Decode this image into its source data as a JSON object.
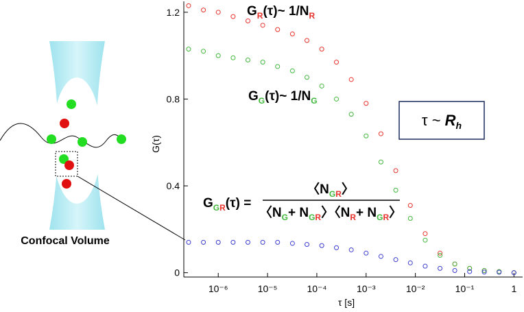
{
  "chart_data": {
    "type": "scatter",
    "x_label": "τ [s]",
    "y_label": "G(τ)",
    "log_x": true,
    "xlim": [
      2e-07,
      1.5
    ],
    "ylim": [
      -0.02,
      1.25
    ],
    "xticks": [
      {
        "value": 1e-06,
        "label": "10⁻⁶"
      },
      {
        "value": 1e-05,
        "label": "10⁻⁵"
      },
      {
        "value": 0.0001,
        "label": "10⁻⁴"
      },
      {
        "value": 0.001,
        "label": "10⁻³"
      },
      {
        "value": 0.01,
        "label": "10⁻²"
      },
      {
        "value": 0.1,
        "label": "10⁻¹"
      },
      1
    ],
    "yticks": [
      0,
      0.4,
      0.8,
      1.2
    ],
    "x": [
      2.5e-07,
      5e-07,
      1e-06,
      2e-06,
      4e-06,
      8e-06,
      1.6e-05,
      3.2e-05,
      6.3e-05,
      0.000126,
      0.00025,
      0.0005,
      0.001,
      0.002,
      0.004,
      0.0079,
      0.0158,
      0.0316,
      0.063,
      0.126,
      0.25,
      0.5,
      1
    ],
    "series": [
      {
        "color": "#e8312a",
        "values": [
          1.23,
          1.21,
          1.2,
          1.18,
          1.16,
          1.14,
          1.12,
          1.1,
          1.07,
          1.03,
          0.97,
          0.89,
          0.78,
          0.64,
          0.47,
          0.31,
          0.18,
          0.09,
          0.04,
          0.02,
          0.01,
          0.005,
          0
        ]
      },
      {
        "color": "#3fb83a",
        "values": [
          1.03,
          1.02,
          1.0,
          0.99,
          0.98,
          0.97,
          0.95,
          0.93,
          0.9,
          0.86,
          0.8,
          0.73,
          0.63,
          0.51,
          0.38,
          0.25,
          0.15,
          0.08,
          0.04,
          0.02,
          0.01,
          0.005,
          0
        ]
      },
      {
        "color": "#3a3ad0",
        "values": [
          0.14,
          0.14,
          0.14,
          0.14,
          0.14,
          0.14,
          0.14,
          0.135,
          0.13,
          0.125,
          0.115,
          0.105,
          0.09,
          0.075,
          0.06,
          0.045,
          0.03,
          0.02,
          0.01,
          0.005,
          0.003,
          0.002,
          0
        ]
      }
    ],
    "annotations": {
      "red": [
        "G",
        "R",
        "(τ)~ 1/N",
        "R"
      ],
      "green": [
        "G",
        "G",
        "(τ)~ 1/N",
        "G"
      ],
      "cross": [
        "G",
        "G",
        "R",
        "(τ) = ",
        "〈N",
        "G",
        "R",
        "〉",
        "〈N",
        "G",
        "+ N",
        "G",
        "R",
        "〉〈N",
        "R",
        "+ N",
        "G",
        "R",
        "〉"
      ],
      "box": [
        "τ ~ ",
        "R",
        "h"
      ],
      "diagram": "Confocal Volume"
    }
  }
}
